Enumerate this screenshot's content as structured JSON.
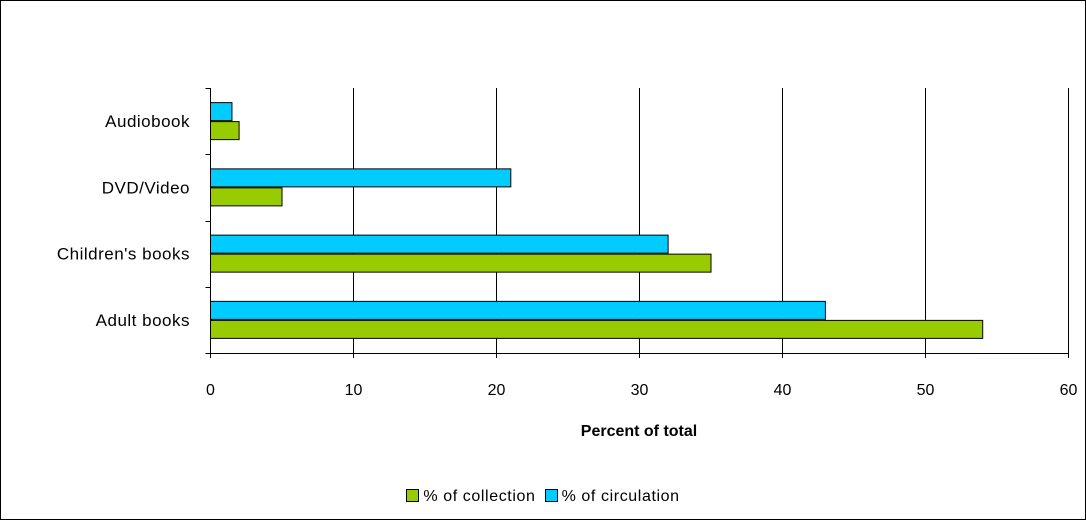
{
  "chart_data": {
    "type": "bar",
    "orientation": "horizontal",
    "categories": [
      "Audiobook",
      "DVD/Video",
      "Children's books",
      "Adult books"
    ],
    "series": [
      {
        "name": "% of circulation",
        "color": "#00ccff",
        "values": [
          1.5,
          21,
          32,
          43
        ]
      },
      {
        "name": "% of collection",
        "color": "#99cc00",
        "values": [
          2,
          5,
          35,
          54
        ]
      }
    ],
    "legend_order": [
      "% of collection",
      "% of circulation"
    ],
    "xlabel": "Percent of total",
    "ylabel": "",
    "xlim": [
      0,
      60
    ],
    "xticks": [
      0,
      10,
      20,
      30,
      40,
      50,
      60
    ],
    "grid": "vertical",
    "legend_position": "bottom"
  }
}
